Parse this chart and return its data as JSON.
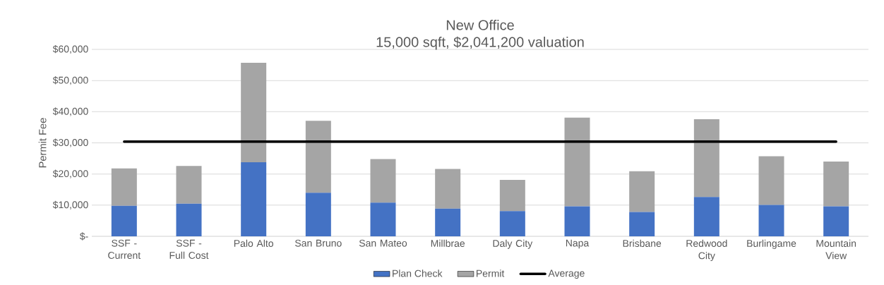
{
  "chart_data": {
    "type": "bar",
    "stacked": true,
    "title": "New Office",
    "subtitle": "15,000 sqft, $2,041,200 valuation",
    "ylabel": "Permit Fee",
    "categories": [
      "SSF - Current",
      "SSF - Full Cost",
      "Palo Alto",
      "San Bruno",
      "San Mateo",
      "Millbrae",
      "Daly City",
      "Napa",
      "Brisbane",
      "Redwood City",
      "Burlingame",
      "Mountain View"
    ],
    "series": [
      {
        "name": "Plan Check",
        "color": "#4472c4",
        "values": [
          9800,
          10500,
          23800,
          14000,
          10800,
          8900,
          8100,
          9600,
          7800,
          12600,
          10100,
          9600
        ]
      },
      {
        "name": "Permit",
        "color": "#a5a5a5",
        "values": [
          12000,
          12100,
          31900,
          23100,
          14000,
          12700,
          10000,
          28500,
          13100,
          25000,
          15600,
          14400
        ]
      },
      {
        "name": "Average",
        "type": "line",
        "color": "#000000",
        "values": [
          30400,
          30400,
          30400,
          30400,
          30400,
          30400,
          30400,
          30400,
          30400,
          30400,
          30400,
          30400
        ]
      }
    ],
    "ylim": [
      0,
      60000
    ],
    "yticks": [
      {
        "value": 0,
        "label": "$-"
      },
      {
        "value": 10000,
        "label": "$10,000"
      },
      {
        "value": 20000,
        "label": "$20,000"
      },
      {
        "value": 30000,
        "label": "$30,000"
      },
      {
        "value": 40000,
        "label": "$40,000"
      },
      {
        "value": 50000,
        "label": "$50,000"
      },
      {
        "value": 60000,
        "label": "$60,000"
      }
    ],
    "grid": "y",
    "legend": "bottom"
  }
}
